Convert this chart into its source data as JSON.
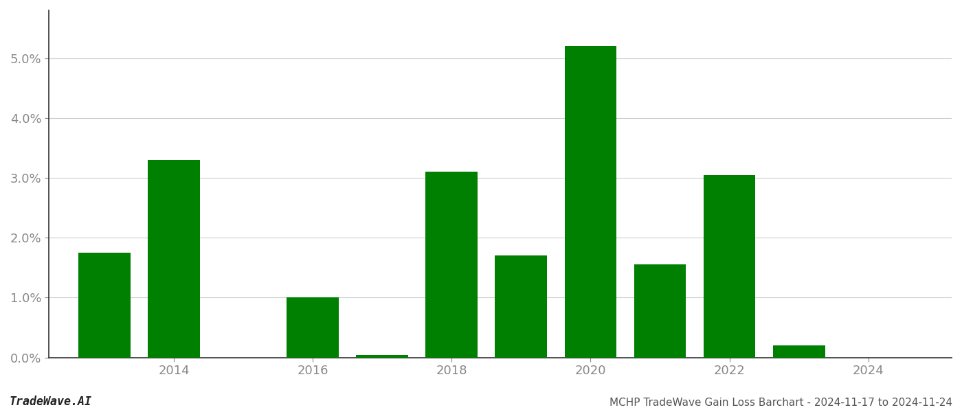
{
  "years": [
    2013,
    2014,
    2015,
    2016,
    2017,
    2018,
    2019,
    2020,
    2021,
    2022,
    2023,
    2024
  ],
  "values": [
    0.0175,
    0.033,
    0.0,
    0.01,
    0.0004,
    0.031,
    0.017,
    0.052,
    0.0155,
    0.0305,
    0.002,
    0.0
  ],
  "bar_color": "#008000",
  "title": "MCHP TradeWave Gain Loss Barchart - 2024-11-17 to 2024-11-24",
  "watermark": "TradeWave.AI",
  "background_color": "#ffffff",
  "grid_color": "#cccccc",
  "ylabel_color": "#888888",
  "xlabel_color": "#888888",
  "ylim": [
    0,
    0.058
  ],
  "yticks": [
    0.0,
    0.01,
    0.02,
    0.03,
    0.04,
    0.05
  ],
  "xtick_positions": [
    2014,
    2016,
    2018,
    2020,
    2022,
    2024
  ],
  "xlim": [
    2012.2,
    2025.2
  ],
  "title_fontsize": 11,
  "watermark_fontsize": 12,
  "tick_fontsize": 13,
  "bar_width": 0.75
}
